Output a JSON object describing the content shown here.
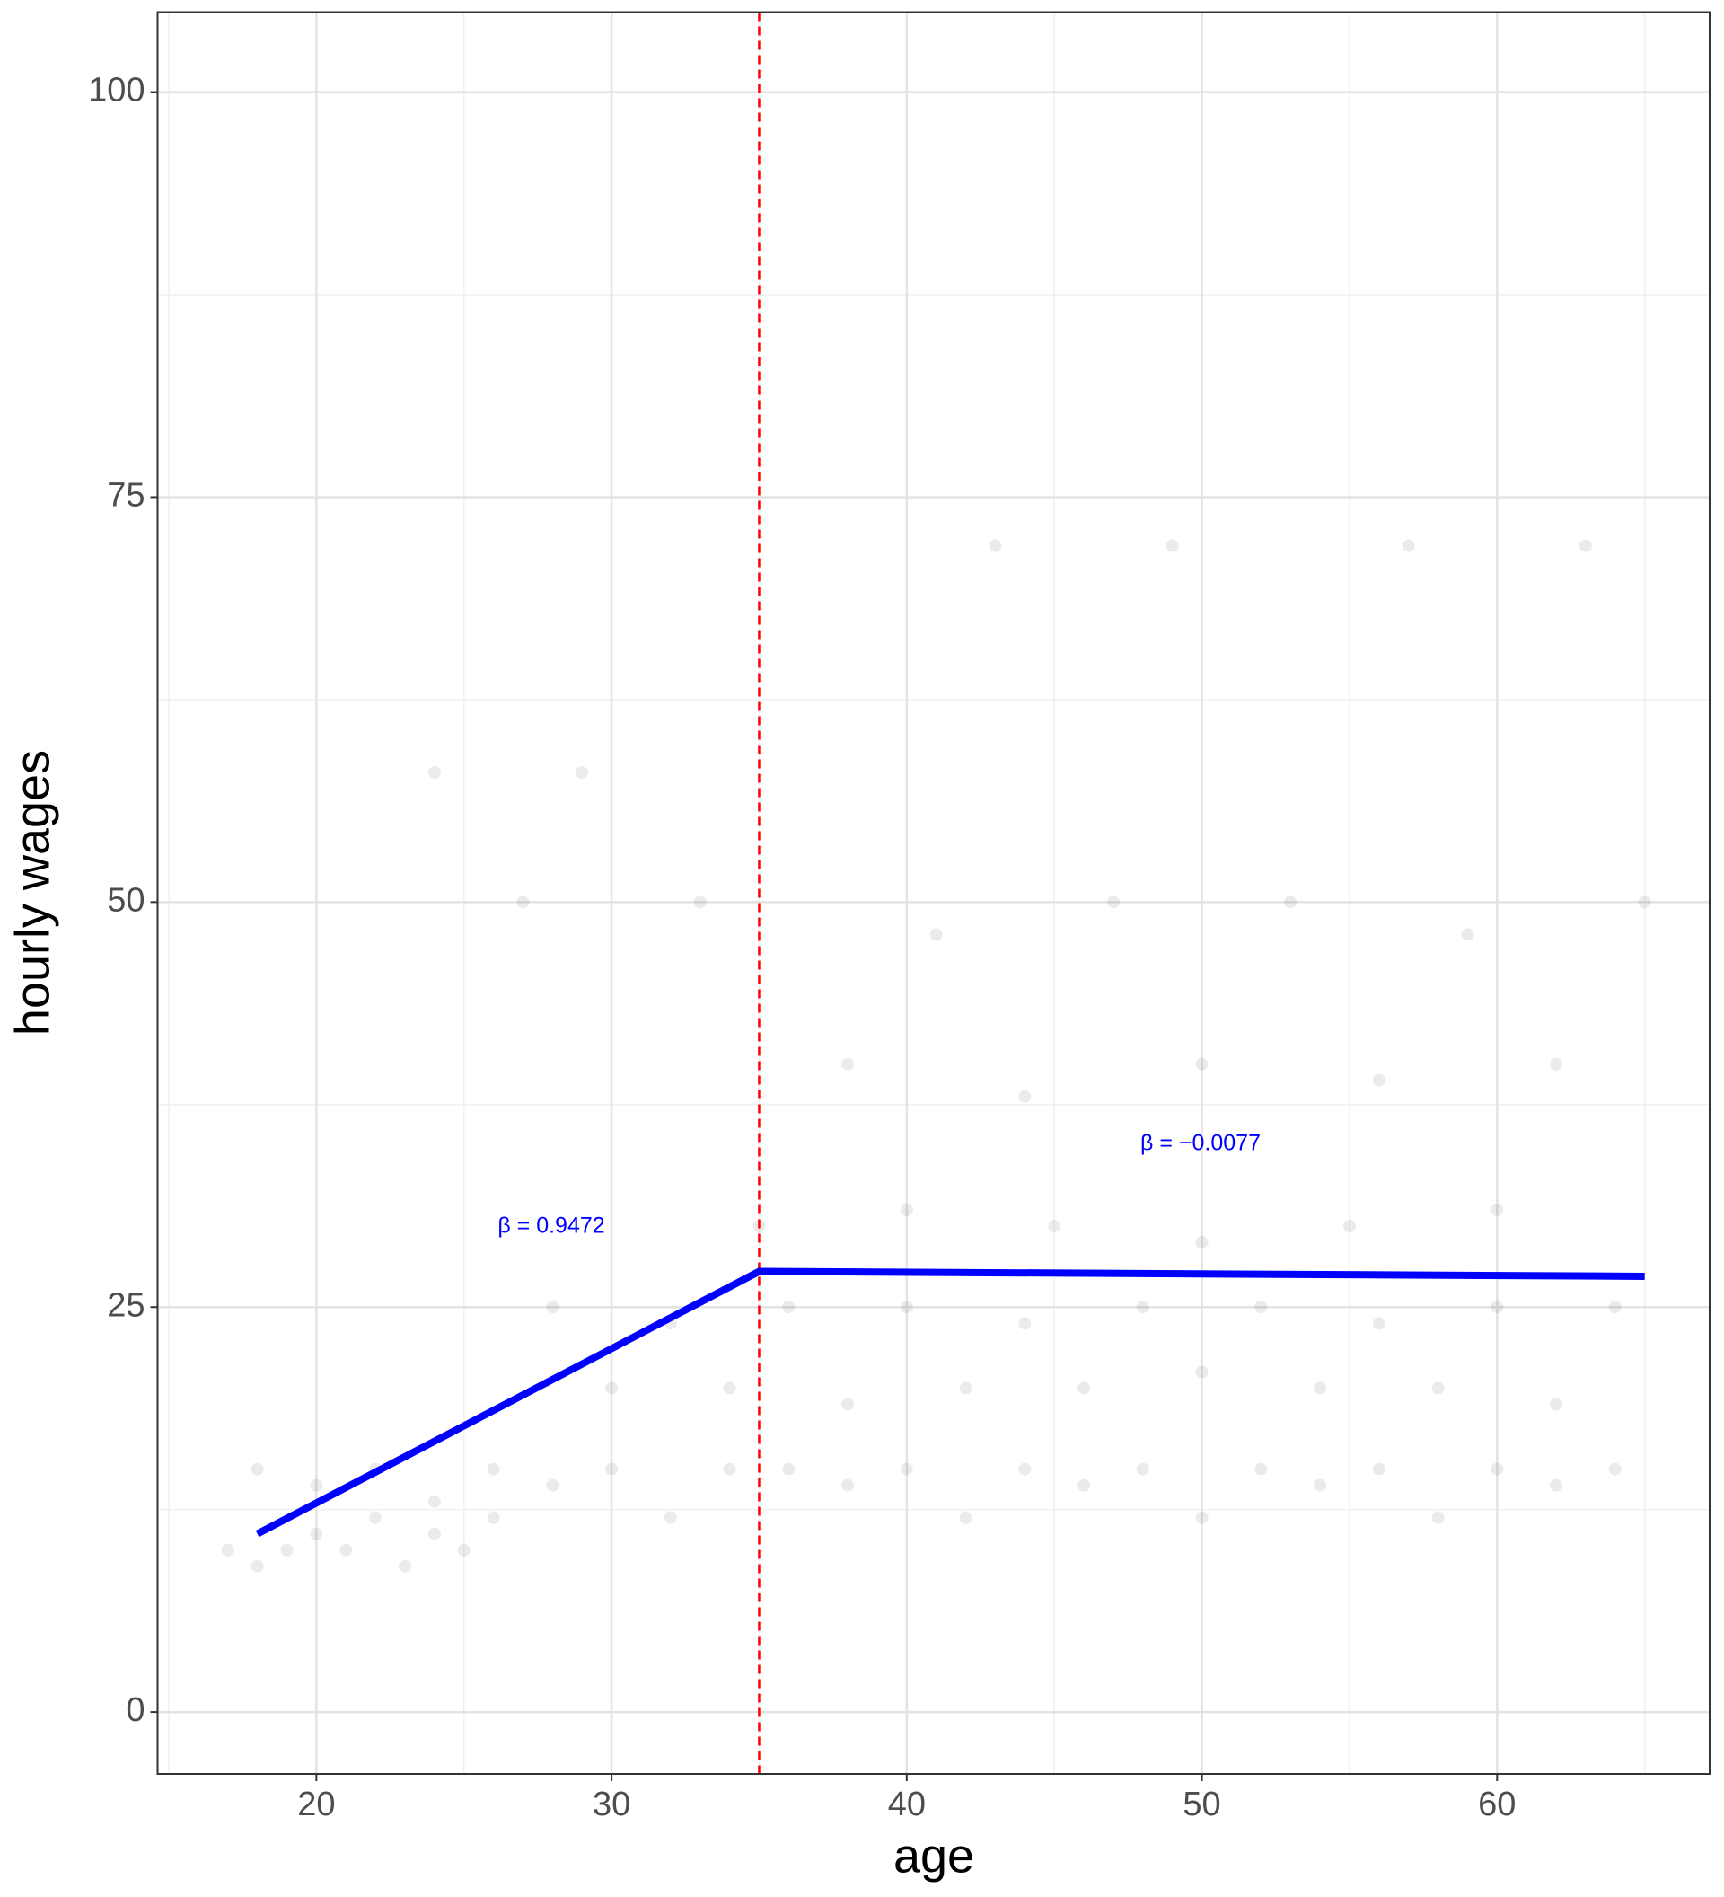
{
  "chart_data": {
    "type": "scatter",
    "xlabel": "age",
    "ylabel": "hourly wages",
    "xlim": [
      14.62,
      67.2
    ],
    "ylim": [
      -3.82,
      104.94
    ],
    "xticks": [
      20,
      30,
      40,
      50,
      60
    ],
    "yticks": [
      0,
      25,
      50,
      75,
      100
    ],
    "minor_xticks": [
      15,
      25,
      35,
      45,
      55,
      65
    ],
    "minor_yticks": [
      12.5,
      37.5,
      62.5,
      87.5
    ],
    "grid": true,
    "points": {
      "color": "#000000",
      "x": [
        17,
        18,
        19,
        20,
        21,
        22,
        23,
        24,
        25,
        26,
        18,
        20,
        22,
        24,
        26,
        28,
        30,
        32,
        34,
        36,
        38,
        40,
        42,
        44,
        46,
        48,
        50,
        52,
        54,
        56,
        58,
        60,
        62,
        64,
        30,
        34,
        38,
        42,
        46,
        50,
        54,
        58,
        62,
        28,
        32,
        36,
        40,
        44,
        48,
        52,
        56,
        60,
        64,
        35,
        40,
        45,
        50,
        55,
        60,
        38,
        44,
        50,
        56,
        62,
        27,
        33,
        41,
        47,
        53,
        59,
        65,
        24,
        29,
        43,
        49,
        57,
        63
      ],
      "y": [
        10,
        9,
        10,
        11,
        10,
        12,
        9,
        11,
        10,
        12,
        15,
        14,
        15,
        13,
        15,
        14,
        15,
        12,
        15,
        15,
        14,
        15,
        12,
        15,
        14,
        15,
        12,
        15,
        14,
        15,
        12,
        15,
        14,
        15,
        20,
        20,
        19,
        20,
        20,
        21,
        20,
        20,
        19,
        25,
        24,
        25,
        25,
        24,
        25,
        25,
        24,
        25,
        25,
        30,
        31,
        30,
        29,
        30,
        31,
        40,
        38,
        40,
        39,
        40,
        50,
        50,
        48,
        50,
        50,
        48,
        50,
        58,
        58,
        72,
        72,
        72,
        72
      ]
    },
    "vline": {
      "x": 35,
      "color": "#ff0000"
    },
    "fit": {
      "color": "#0000ff",
      "x": [
        18,
        35,
        65
      ],
      "values": [
        11,
        27.2,
        26.9
      ]
    },
    "annotations": [
      "β = 0.9472",
      "β = −0.0077"
    ],
    "annotation_color": "#0000ff"
  }
}
